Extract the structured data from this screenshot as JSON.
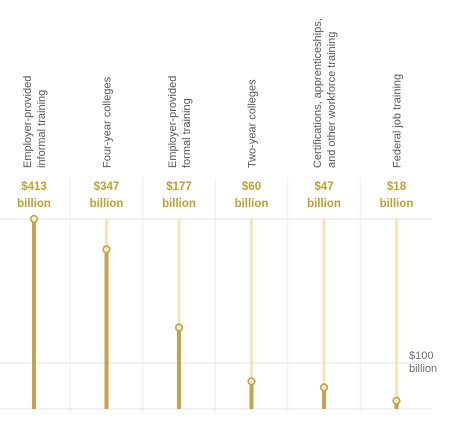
{
  "chart_data": {
    "type": "bar",
    "title": "",
    "xlabel": "",
    "ylabel": "",
    "unit": "billion",
    "categories": [
      [
        "Employer-provided",
        "informal training"
      ],
      [
        "Four-year colleges"
      ],
      [
        "Employer-provided",
        "formal training"
      ],
      [
        "Two-year colleges"
      ],
      [
        "Certifications, apprenticeships,",
        "and other workforce training"
      ],
      [
        "Federal job training"
      ]
    ],
    "values": [
      413,
      347,
      177,
      60,
      47,
      18
    ],
    "value_labels": [
      [
        "$413",
        "billion"
      ],
      [
        "$347",
        "billion"
      ],
      [
        "$177",
        "billion"
      ],
      [
        "$60",
        "billion"
      ],
      [
        "$47",
        "billion"
      ],
      [
        "$18",
        "billion"
      ]
    ],
    "reference_line": {
      "value": 100,
      "label": [
        "$100",
        "billion"
      ]
    },
    "ylim": [
      0,
      413
    ],
    "grid": false,
    "colors": {
      "stem": "#c4a447",
      "stem_track": "#f5e6b6",
      "marker_fill": "#f7ecc4",
      "value_text": "#c0a030",
      "divider": "#ececec",
      "gridline": "#e2e2e2",
      "label_text": "#595959"
    }
  }
}
